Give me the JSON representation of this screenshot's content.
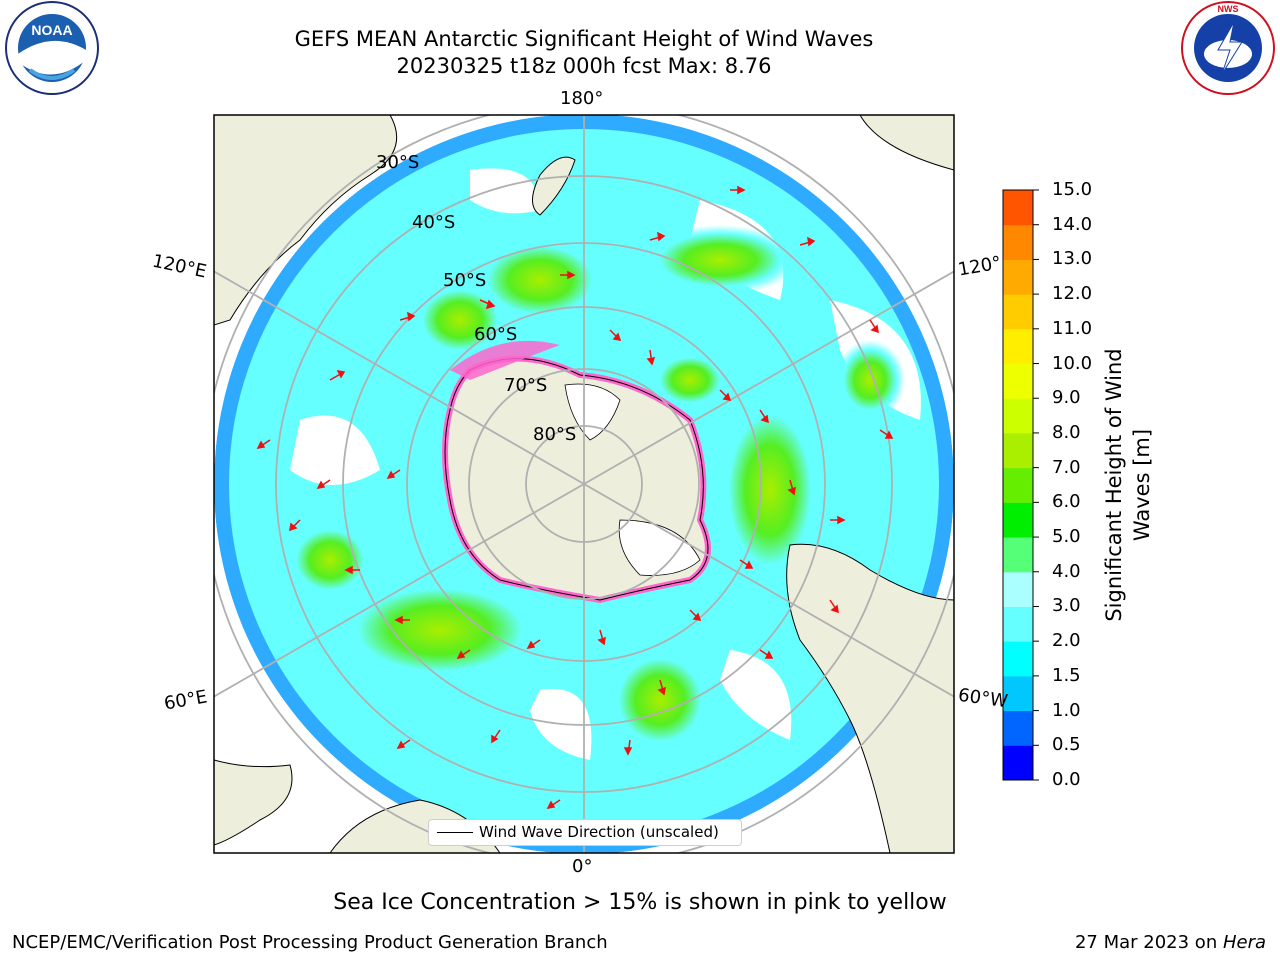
{
  "title": {
    "line1": "GEFS MEAN Antarctic Significant Height of Wind Waves",
    "line2": "20230325 t18z 000h fcst   Max: 8.76"
  },
  "map": {
    "projection": "south-polar-stereographic",
    "longitude_labels": {
      "top": "180°",
      "bottom": "0°",
      "upper_left": "120°E",
      "upper_right": "120°",
      "lower_left": "60°E",
      "lower_right": "60°W"
    },
    "latitude_labels": [
      "30°S",
      "40°S",
      "50°S",
      "60°S",
      "70°S",
      "80°S"
    ],
    "legend_label": "Wind Wave Direction (unscaled)",
    "colors": {
      "land": "#eeeedd",
      "sea_ice": "#ff66cc",
      "arrows": "#ee1111",
      "grid": "#b0b0b0"
    }
  },
  "colorbar": {
    "title": "Significant Height of Wind Waves [m]",
    "tick_labels": [
      "0.0",
      "0.5",
      "1.0",
      "1.5",
      "2.0",
      "3.0",
      "4.0",
      "5.0",
      "6.0",
      "7.0",
      "8.0",
      "9.0",
      "10.0",
      "11.0",
      "12.0",
      "13.0",
      "14.0",
      "15.0"
    ],
    "colors": [
      "#0000ff",
      "#0066ff",
      "#00c8ff",
      "#00ffff",
      "#66ffff",
      "#aaffff",
      "#55ff77",
      "#00ee00",
      "#66ee00",
      "#aaee00",
      "#ccff00",
      "#eeff00",
      "#ffee00",
      "#ffcc00",
      "#ffaa00",
      "#ff8800",
      "#ff5500",
      "#ff2200",
      "#ff0000"
    ]
  },
  "caption": "Sea Ice Concentration > 15% is shown in pink to yellow",
  "footer": {
    "left": "NCEP/EMC/Verification Post Processing Product Generation Branch",
    "right_date": "27 Mar 2023 on ",
    "right_host": "Hera"
  },
  "logos": {
    "noaa": "NOAA",
    "noaa_ring": "NATIONAL OCEANIC AND ATMOSPHERIC ADMINISTRATION · U.S. DEPARTMENT OF COMMERCE",
    "nws_ring": "NATIONAL WEATHER SERVICE"
  }
}
